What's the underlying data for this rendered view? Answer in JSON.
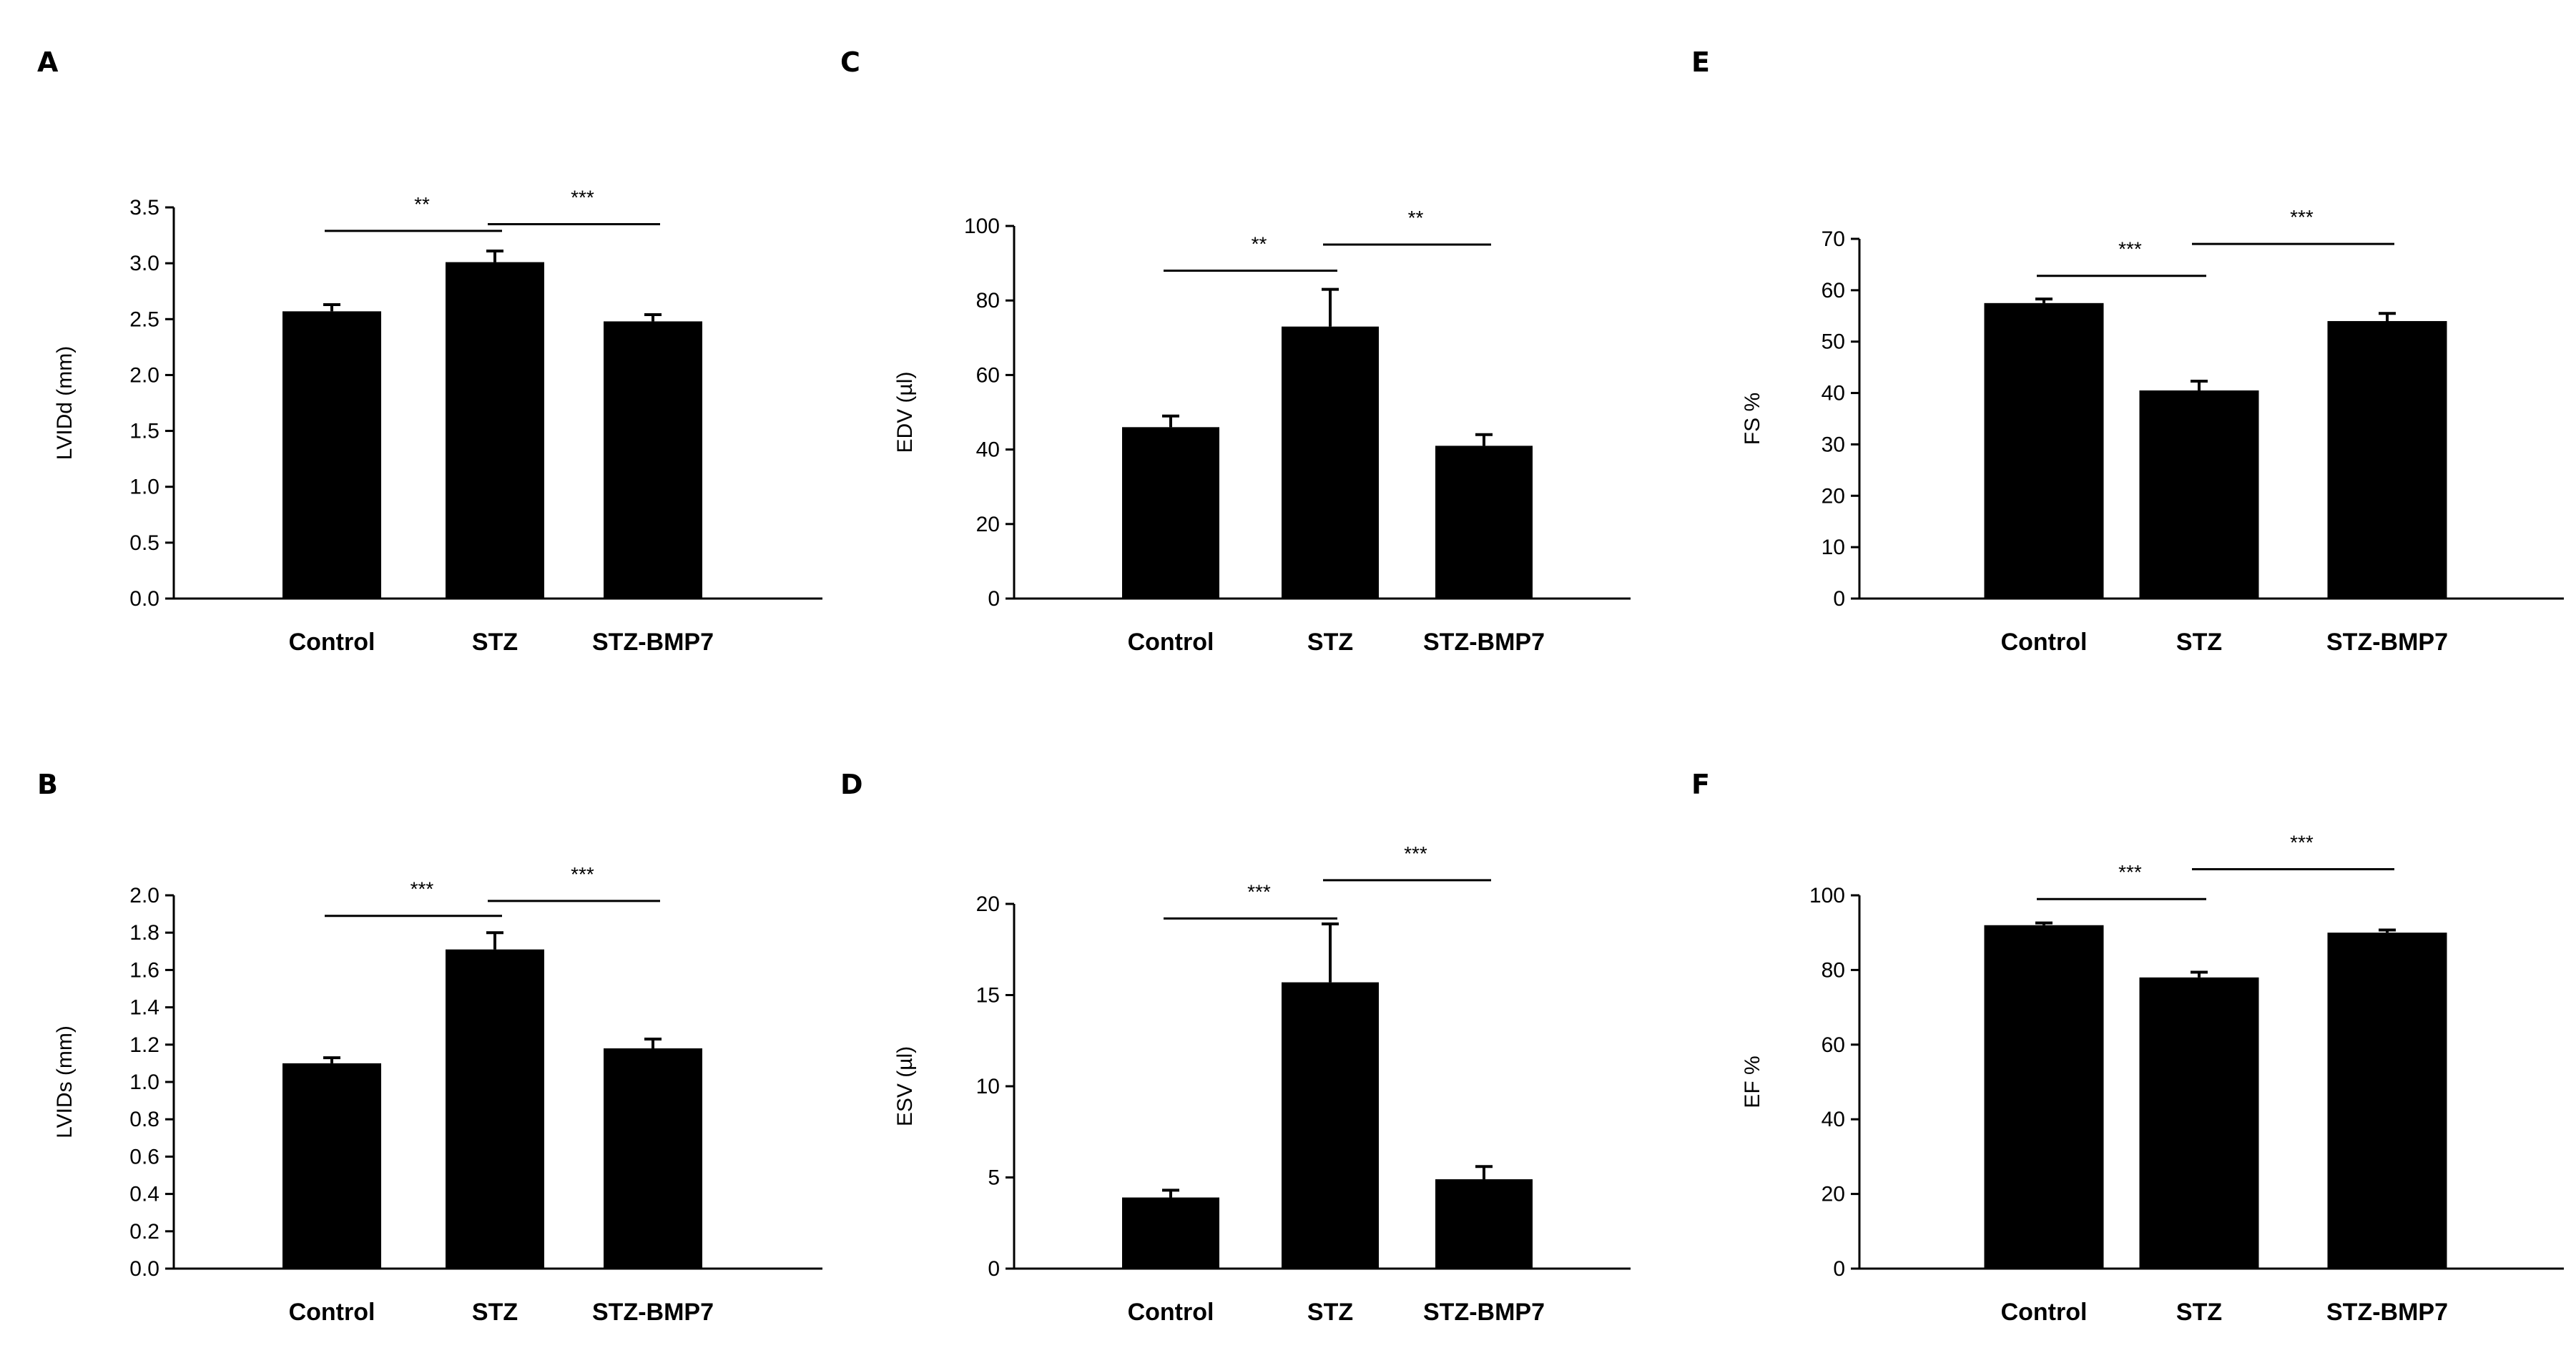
{
  "figure": {
    "background": "#ffffff",
    "bar_color": "#000000",
    "line_color": "#000000"
  },
  "chart_data": [
    {
      "panel": "A",
      "type": "bar",
      "categories": [
        "Control",
        "STZ",
        "STZ-BMP7"
      ],
      "values": [
        2.57,
        3.01,
        2.48
      ],
      "errors": [
        0.06,
        0.1,
        0.06
      ],
      "ylabel": "LVIDd (mm)",
      "ylim": [
        0,
        3.5
      ],
      "yticks": [
        0,
        0.5,
        1,
        1.5,
        2,
        2.5,
        3,
        3.5
      ],
      "ytick_labels": [
        "0.0",
        "0.5",
        "1.0",
        "1.5",
        "2.0",
        "2.5",
        "3.0",
        "3.5"
      ],
      "significance": [
        {
          "from": "Control",
          "to": "STZ",
          "label": "**",
          "level": 3.29
        },
        {
          "from": "STZ",
          "to": "STZ-BMP7",
          "label": "***",
          "level": 3.35
        }
      ]
    },
    {
      "panel": "B",
      "type": "bar",
      "categories": [
        "Control",
        "STZ",
        "STZ-BMP7"
      ],
      "values": [
        1.1,
        1.71,
        1.18
      ],
      "errors": [
        0.03,
        0.09,
        0.05
      ],
      "ylabel": "LVIDs (mm)",
      "ylim": [
        0,
        2.0
      ],
      "yticks": [
        0,
        0.2,
        0.4,
        0.6,
        0.8,
        1,
        1.2,
        1.4,
        1.6,
        1.8,
        2
      ],
      "ytick_labels": [
        "0.0",
        "0.2",
        "0.4",
        "0.6",
        "0.8",
        "1.0",
        "1.2",
        "1.4",
        "1.6",
        "1.8",
        "2.0"
      ],
      "significance": [
        {
          "from": "Control",
          "to": "STZ",
          "label": "***",
          "level": 1.89
        },
        {
          "from": "STZ",
          "to": "STZ-BMP7",
          "label": "***",
          "level": 1.97
        }
      ]
    },
    {
      "panel": "C",
      "type": "bar",
      "categories": [
        "Control",
        "STZ",
        "STZ-BMP7"
      ],
      "values": [
        46,
        73,
        41
      ],
      "errors": [
        3,
        10,
        3
      ],
      "ylabel": "EDV (µl)",
      "ylim": [
        0,
        100
      ],
      "yticks": [
        0,
        20,
        40,
        60,
        80,
        100
      ],
      "ytick_labels": [
        "0",
        "20",
        "40",
        "60",
        "80",
        "100"
      ],
      "significance": [
        {
          "from": "Control",
          "to": "STZ",
          "label": "**",
          "level": 88
        },
        {
          "from": "STZ",
          "to": "STZ-BMP7",
          "label": "**",
          "level": 95
        }
      ]
    },
    {
      "panel": "D",
      "type": "bar",
      "categories": [
        "Control",
        "STZ",
        "STZ-BMP7"
      ],
      "values": [
        3.9,
        15.7,
        4.9
      ],
      "errors": [
        0.4,
        3.2,
        0.7
      ],
      "ylabel": "ESV (µl)",
      "ylim": [
        0,
        20
      ],
      "yticks": [
        0,
        5,
        10,
        15,
        20
      ],
      "ytick_labels": [
        "0",
        "5",
        "10",
        "15",
        "20"
      ],
      "significance": [
        {
          "from": "Control",
          "to": "STZ",
          "label": "***",
          "level": 19.2
        },
        {
          "from": "STZ",
          "to": "STZ-BMP7",
          "label": "***",
          "level": 21.3
        }
      ]
    },
    {
      "panel": "E",
      "type": "bar",
      "categories": [
        "Control",
        "STZ",
        "STZ-BMP7"
      ],
      "values": [
        57.5,
        40.5,
        54
      ],
      "errors": [
        0.8,
        1.8,
        1.5
      ],
      "ylabel": "FS %",
      "ylim": [
        0,
        70
      ],
      "yticks": [
        0,
        10,
        20,
        30,
        40,
        50,
        60,
        70
      ],
      "ytick_labels": [
        "0",
        "10",
        "20",
        "30",
        "40",
        "50",
        "60",
        "70"
      ],
      "significance": [
        {
          "from": "Control",
          "to": "STZ",
          "label": "***",
          "level": 62.8
        },
        {
          "from": "STZ",
          "to": "STZ-BMP7",
          "label": "***",
          "level": 69
        }
      ]
    },
    {
      "panel": "F",
      "type": "bar",
      "categories": [
        "Control",
        "STZ",
        "STZ-BMP7"
      ],
      "values": [
        92,
        78,
        90
      ],
      "errors": [
        0.6,
        1.4,
        0.7
      ],
      "ylabel": "EF %",
      "ylim": [
        0,
        100
      ],
      "yticks": [
        0,
        20,
        40,
        60,
        80,
        100
      ],
      "ytick_labels": [
        "0",
        "20",
        "40",
        "60",
        "80",
        "100"
      ],
      "significance": [
        {
          "from": "Control",
          "to": "STZ",
          "label": "***",
          "level": 99
        },
        {
          "from": "STZ",
          "to": "STZ-BMP7",
          "label": "***",
          "level": 107
        }
      ]
    }
  ]
}
